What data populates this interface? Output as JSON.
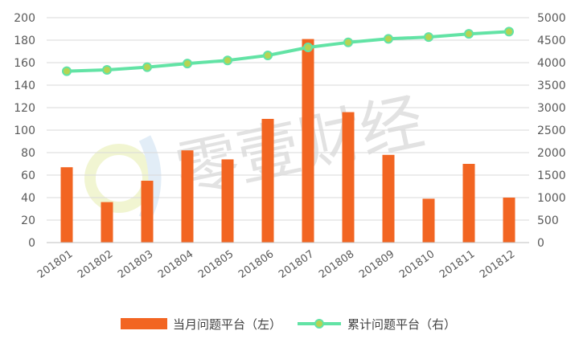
{
  "watermark": {
    "text": "零壹财经"
  },
  "colors": {
    "bar": "#f26522",
    "line": "#62e3a5",
    "marker_fill": "#b5d453",
    "grid": "#d9d9d9",
    "axis": "#bfbfbf"
  },
  "chart_data": {
    "type": "bar",
    "categories": [
      "201801",
      "201802",
      "201803",
      "201804",
      "201805",
      "201806",
      "201807",
      "201808",
      "201809",
      "201810",
      "201811",
      "201812"
    ],
    "series": [
      {
        "name": "当月问题平台（左）",
        "type": "bar",
        "axis": "left",
        "values": [
          67,
          36,
          55,
          82,
          74,
          110,
          181,
          116,
          78,
          39,
          70,
          40
        ]
      },
      {
        "name": "累计问题平台（右）",
        "type": "line",
        "axis": "right",
        "values": [
          3810,
          3840,
          3900,
          3980,
          4050,
          4160,
          4340,
          4450,
          4530,
          4570,
          4640,
          4690
        ]
      }
    ],
    "ylim_left": [
      0,
      200
    ],
    "yticks_left": [
      0,
      20,
      40,
      60,
      80,
      100,
      120,
      140,
      160,
      180,
      200
    ],
    "ylim_right": [
      0,
      5000
    ],
    "yticks_right": [
      0,
      500,
      1000,
      1500,
      2000,
      2500,
      3000,
      3500,
      4000,
      4500,
      5000
    ],
    "grid": true,
    "legend": "bottom"
  }
}
